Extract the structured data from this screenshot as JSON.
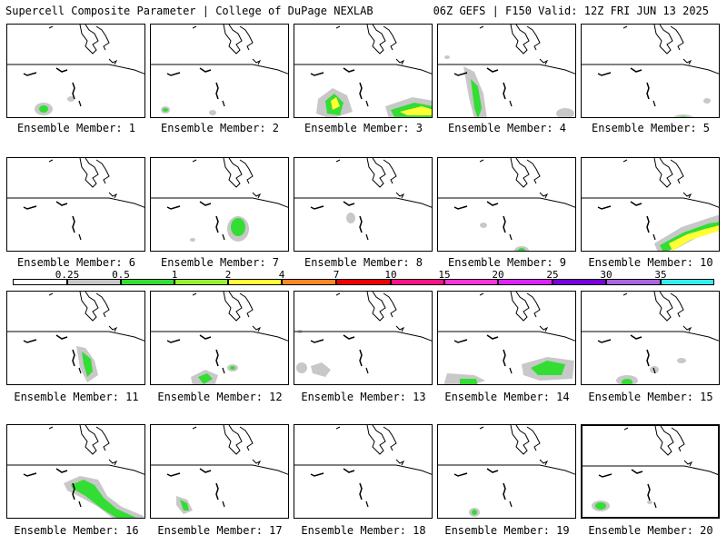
{
  "header": {
    "left": "Supercell Composite Parameter | College of DuPage NEXLAB",
    "right": "06Z GEFS | F150 Valid: 12Z FRI JUN 13 2025"
  },
  "members": [
    {
      "label": "Ensemble Member: 1"
    },
    {
      "label": "Ensemble Member: 2"
    },
    {
      "label": "Ensemble Member: 3"
    },
    {
      "label": "Ensemble Member: 4"
    },
    {
      "label": "Ensemble Member: 5"
    },
    {
      "label": "Ensemble Member: 6"
    },
    {
      "label": "Ensemble Member: 7"
    },
    {
      "label": "Ensemble Member: 8"
    },
    {
      "label": "Ensemble Member: 9"
    },
    {
      "label": "Ensemble Member: 10"
    },
    {
      "label": "Ensemble Member: 11"
    },
    {
      "label": "Ensemble Member: 12"
    },
    {
      "label": "Ensemble Member: 13"
    },
    {
      "label": "Ensemble Member: 14"
    },
    {
      "label": "Ensemble Member: 15"
    },
    {
      "label": "Ensemble Member: 16"
    },
    {
      "label": "Ensemble Member: 17"
    },
    {
      "label": "Ensemble Member: 18"
    },
    {
      "label": "Ensemble Member: 19"
    },
    {
      "label": "Ensemble Member: 20"
    }
  ],
  "legend": {
    "labels": [
      "0.25",
      "0.5",
      "1",
      "2",
      "4",
      "7",
      "10",
      "15",
      "20",
      "25",
      "30",
      "35"
    ],
    "colors": [
      "#ffffff",
      "#c8c8c8",
      "#33dd33",
      "#99ee33",
      "#ffff33",
      "#ff8822",
      "#ee0000",
      "#ff1188",
      "#ff33dd",
      "#dd22ff",
      "#7700dd",
      "#aa66dd",
      "#33eeee"
    ]
  },
  "colors": {
    "gray": "#c8c8c8",
    "green": "#33dd33",
    "lightgreen": "#99ee33",
    "yellow": "#ffff33",
    "orange": "#ff8822"
  }
}
